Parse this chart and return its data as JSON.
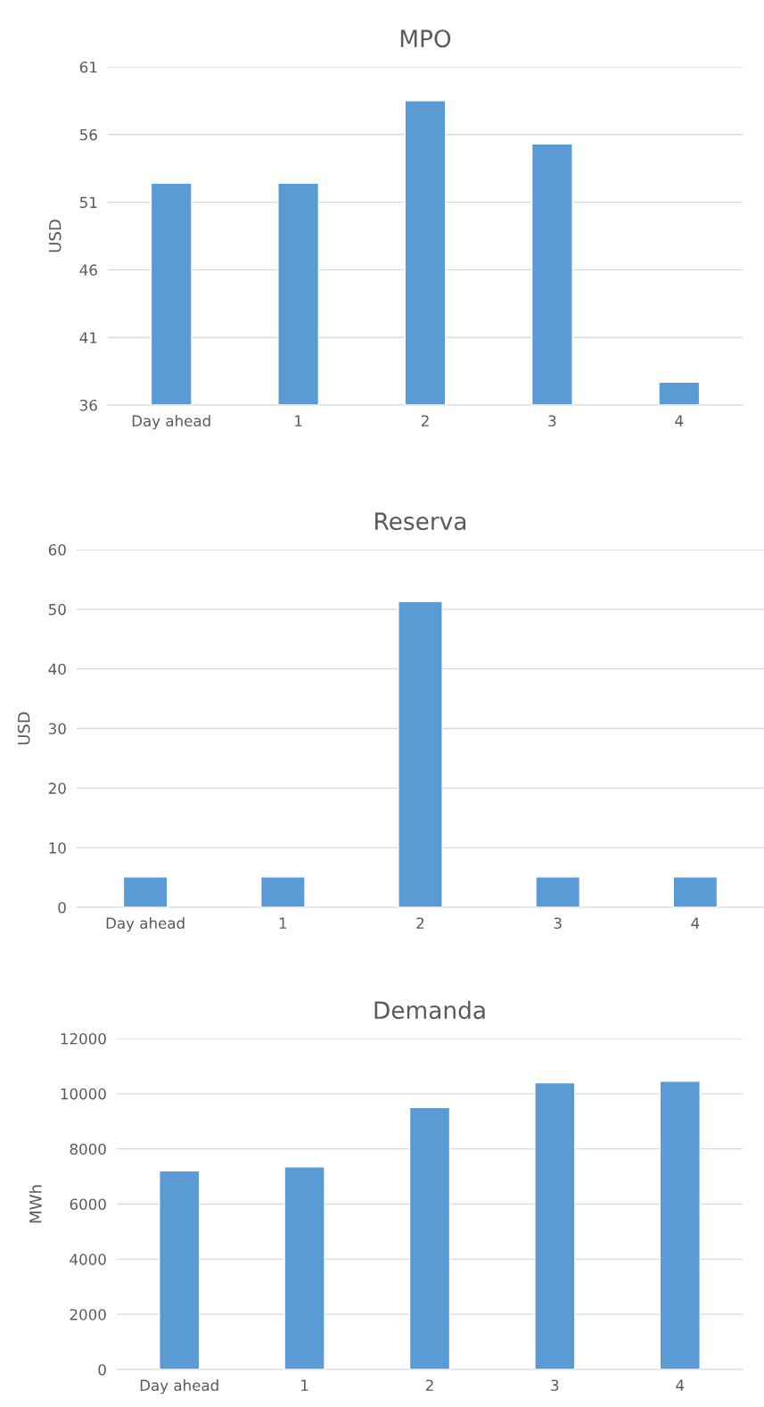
{
  "chart_data": [
    {
      "type": "bar",
      "title": "MPO",
      "ylabel": "USD",
      "categories": [
        "Day ahead",
        "1",
        "2",
        "3",
        "4"
      ],
      "values": [
        52.4,
        52.4,
        58.5,
        55.3,
        37.7
      ],
      "color": "#5b9bd5",
      "ylim": [
        36,
        61
      ],
      "yticks": [
        36,
        41,
        46,
        51,
        56,
        61
      ],
      "grid": "y"
    },
    {
      "type": "bar",
      "title": "Reserva",
      "ylabel": "USD",
      "categories": [
        "Day ahead",
        "1",
        "2",
        "3",
        "4"
      ],
      "values": [
        5.1,
        5.1,
        51.3,
        5.1,
        5.1
      ],
      "color": "#5b9bd5",
      "ylim": [
        0,
        60
      ],
      "yticks": [
        0,
        10,
        20,
        30,
        40,
        50,
        60
      ],
      "grid": "y"
    },
    {
      "type": "bar",
      "title": "Demanda",
      "ylabel": "MWh",
      "categories": [
        "Day ahead",
        "1",
        "2",
        "3",
        "4"
      ],
      "values": [
        7200,
        7350,
        9500,
        10400,
        10450
      ],
      "color": "#5b9bd5",
      "ylim": [
        0,
        12000
      ],
      "yticks": [
        0,
        2000,
        4000,
        6000,
        8000,
        10000,
        12000
      ],
      "grid": "y"
    }
  ]
}
